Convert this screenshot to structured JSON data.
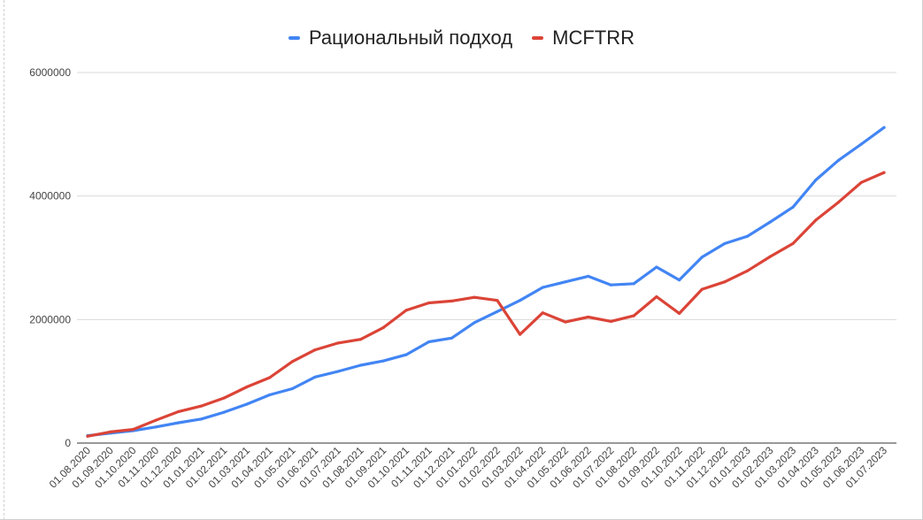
{
  "chart_data": {
    "type": "line",
    "title": "",
    "xlabel": "",
    "ylabel": "",
    "ylim": [
      0,
      6000000
    ],
    "y_ticks": [
      "0",
      "2000000",
      "4000000",
      "6000000"
    ],
    "y_tick_values": [
      0,
      2000000,
      4000000,
      6000000
    ],
    "grid": true,
    "legend_position": "top-center",
    "categories": [
      "01.08.2020",
      "01.09.2020",
      "01.10.2020",
      "01.11.2020",
      "01.12.2020",
      "01.01.2021",
      "01.02.2021",
      "01.03.2021",
      "01.04.2021",
      "01.05.2021",
      "01.06.2021",
      "01.07.2021",
      "01.08.2021",
      "01.09.2021",
      "01.10.2021",
      "01.11.2021",
      "01.12.2021",
      "01.01.2022",
      "01.02.2022",
      "01.03.2022",
      "01.04.2022",
      "01.05.2022",
      "01.06.2022",
      "01.07.2022",
      "01.08.2022",
      "01.09.2022",
      "01.10.2022",
      "01.11.2022",
      "01.12.2022",
      "01.01.2023",
      "01.02.2023",
      "01.03.2023",
      "01.04.2023",
      "01.05.2023",
      "01.06.2023",
      "01.07.2023"
    ],
    "series": [
      {
        "name": "Рациональный подход",
        "color": "#4285f4",
        "values": [
          120000,
          160000,
          200000,
          260000,
          330000,
          390000,
          500000,
          630000,
          780000,
          880000,
          1070000,
          1160000,
          1260000,
          1330000,
          1430000,
          1640000,
          1700000,
          1950000,
          2130000,
          2310000,
          2520000,
          2610000,
          2700000,
          2560000,
          2580000,
          2850000,
          2640000,
          3010000,
          3230000,
          3350000,
          3580000,
          3820000,
          4260000,
          4580000,
          4840000,
          5110000
        ]
      },
      {
        "name": "MCFTRR",
        "color": "#db4437",
        "values": [
          110000,
          180000,
          220000,
          370000,
          510000,
          600000,
          730000,
          910000,
          1060000,
          1320000,
          1510000,
          1620000,
          1680000,
          1870000,
          2150000,
          2270000,
          2300000,
          2360000,
          2310000,
          1760000,
          2110000,
          1960000,
          2040000,
          1970000,
          2060000,
          2370000,
          2100000,
          2490000,
          2610000,
          2790000,
          3020000,
          3230000,
          3610000,
          3900000,
          4220000,
          4380000
        ]
      }
    ]
  }
}
